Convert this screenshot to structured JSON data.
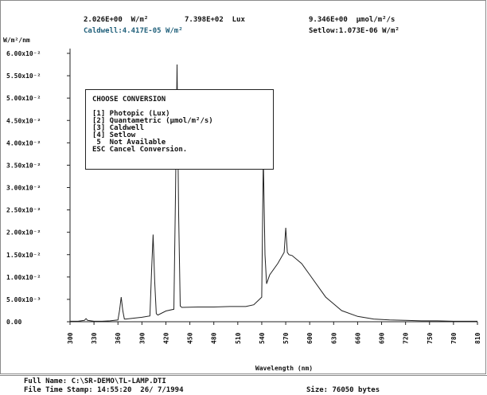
{
  "header": {
    "irradiance_wm2": "2.026E+00  W/m²",
    "illuminance_lux": "7.398E+02  Lux",
    "quantum": "9.346E+00  µmol/m²/s",
    "caldwell": "Caldwell:4.417E-05 W/m²",
    "setlow": "Setlow:1.073E-06 W/m²"
  },
  "chart_data": {
    "type": "line",
    "ylabel": "W/m²/nm",
    "xlabel": "Wavelength  (nm)",
    "xlim": [
      300,
      810
    ],
    "ylim": [
      0,
      0.06
    ],
    "y_ticks": [
      {
        "v": 0.0,
        "label": "0.00"
      },
      {
        "v": 0.005,
        "label": "5.00x10⁻³"
      },
      {
        "v": 0.01,
        "label": "1.00x10⁻²"
      },
      {
        "v": 0.015,
        "label": "1.50x10⁻²"
      },
      {
        "v": 0.02,
        "label": "2.00x10⁻²"
      },
      {
        "v": 0.025,
        "label": "2.50x10⁻²"
      },
      {
        "v": 0.03,
        "label": "3.00x10⁻²"
      },
      {
        "v": 0.035,
        "label": "3.50x10⁻²"
      },
      {
        "v": 0.04,
        "label": "4.00x10⁻²"
      },
      {
        "v": 0.045,
        "label": "4.50x10⁻²"
      },
      {
        "v": 0.05,
        "label": "5.00x10⁻²"
      },
      {
        "v": 0.055,
        "label": "5.50x10⁻²"
      },
      {
        "v": 0.06,
        "label": "6.00x10⁻²"
      }
    ],
    "x_ticks": [
      300,
      330,
      360,
      390,
      420,
      450,
      480,
      510,
      540,
      570,
      600,
      630,
      660,
      690,
      720,
      750,
      780,
      810
    ],
    "grid": false,
    "series": [
      {
        "x": [
          300,
          310,
          318,
          320,
          322,
          330,
          340,
          350,
          360,
          362,
          364,
          366,
          368,
          370,
          380,
          390,
          400,
          402,
          404,
          406,
          408,
          410,
          420,
          430,
          432,
          434,
          436,
          438,
          440,
          460,
          480,
          500,
          520,
          530,
          540,
          542,
          544,
          546,
          548,
          550,
          560,
          568,
          570,
          572,
          574,
          578,
          590,
          600,
          620,
          640,
          660,
          680,
          700,
          720,
          740,
          760,
          780,
          800,
          810
        ],
        "y": [
          0.0001,
          0.0001,
          0.0003,
          0.0007,
          0.0003,
          0.0001,
          0.0001,
          0.0002,
          0.0004,
          0.0025,
          0.0055,
          0.0025,
          0.0006,
          0.0006,
          0.0008,
          0.001,
          0.0013,
          0.011,
          0.0195,
          0.009,
          0.0018,
          0.0015,
          0.0024,
          0.0028,
          0.028,
          0.0575,
          0.024,
          0.0035,
          0.0032,
          0.0033,
          0.0033,
          0.0034,
          0.0034,
          0.0038,
          0.0055,
          0.037,
          0.015,
          0.0085,
          0.0095,
          0.0105,
          0.013,
          0.0155,
          0.021,
          0.0155,
          0.015,
          0.0148,
          0.013,
          0.0105,
          0.0055,
          0.0025,
          0.0012,
          0.0006,
          0.0004,
          0.0003,
          0.0002,
          0.0002,
          0.0001,
          0.0001,
          0.0001
        ]
      }
    ]
  },
  "dialog": {
    "title": "CHOOSE CONVERSION",
    "options": [
      "[1] Photopic (Lux)",
      "[2] Quantametric (µmol/m²/s)",
      "[3] Caldwell",
      "[4] Setlow",
      " 5  Not Available",
      "ESC Cancel Conversion."
    ]
  },
  "footer": {
    "full_name": "Full Name: C:\\SR-DEMO\\TL-LAMP.DTI",
    "time_stamp": "File Time Stamp: 14:55:20  26/ 7/1994",
    "size": "Size: 76050 bytes"
  }
}
